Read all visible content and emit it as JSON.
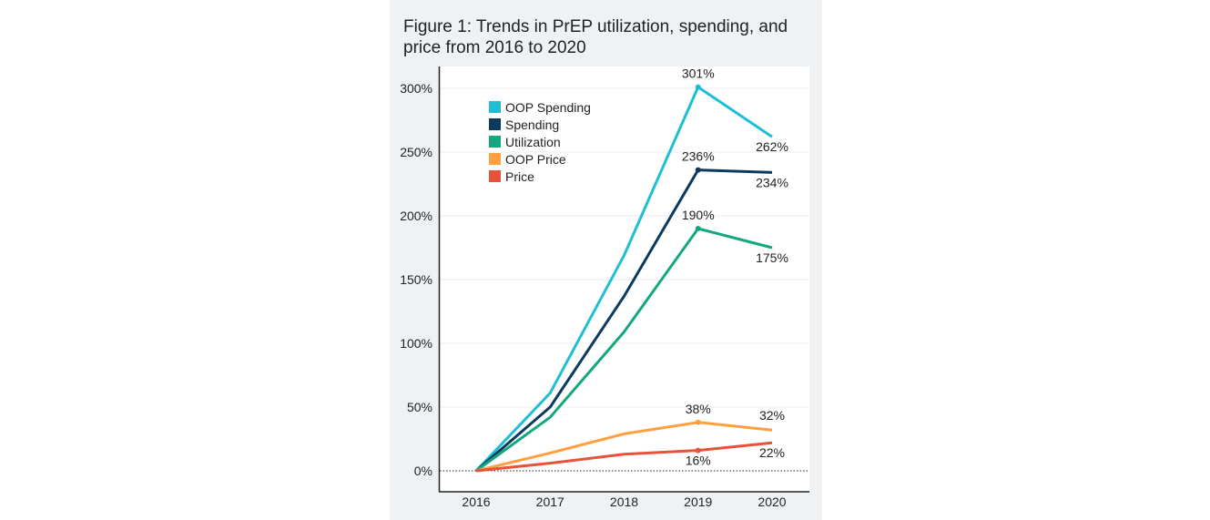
{
  "chart_data": {
    "type": "line",
    "title": "Figure 1: Trends in PrEP utilization, spending, and price from 2016 to 2020",
    "xlabel": "",
    "ylabel": "",
    "categories": [
      "2016",
      "2017",
      "2018",
      "2019",
      "2020"
    ],
    "ylim": [
      -15,
      317
    ],
    "yticks": [
      0,
      50,
      100,
      150,
      200,
      250,
      300
    ],
    "ytick_labels": [
      "0%",
      "50%",
      "100%",
      "150%",
      "200%",
      "250%",
      "300%"
    ],
    "grid": "horizontal",
    "legend_placement": "top-left",
    "series": [
      {
        "name": "OOP Spending",
        "color": "#1ebfd6",
        "values": [
          0,
          61,
          169,
          301,
          262
        ],
        "labels": {
          "3": "301%",
          "4": "262%"
        }
      },
      {
        "name": "Spending",
        "color": "#0c3a5e",
        "values": [
          0,
          50,
          137,
          236,
          234
        ],
        "labels": {
          "3": "236%",
          "4": "234%"
        }
      },
      {
        "name": "Utilization",
        "color": "#13a77f",
        "values": [
          0,
          42,
          109,
          190,
          175
        ],
        "labels": {
          "3": "190%",
          "4": "175%"
        }
      },
      {
        "name": "OOP Price",
        "color": "#ff9f40",
        "values": [
          0,
          14,
          29,
          38,
          32
        ],
        "labels": {
          "3": "38%",
          "4": "32%"
        }
      },
      {
        "name": "Price",
        "color": "#e8513a",
        "values": [
          0,
          6,
          13,
          16,
          22
        ],
        "labels": {
          "3": "16%",
          "4": "22%"
        }
      }
    ]
  }
}
